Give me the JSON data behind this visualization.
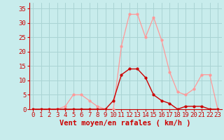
{
  "title": "",
  "xlabel": "Vent moyen/en rafales ( km/h )",
  "ylabel": "",
  "xlim": [
    -0.5,
    23.5
  ],
  "ylim": [
    0,
    37
  ],
  "yticks": [
    0,
    5,
    10,
    15,
    20,
    25,
    30,
    35
  ],
  "xticks": [
    0,
    1,
    2,
    3,
    4,
    5,
    6,
    7,
    8,
    9,
    10,
    11,
    12,
    13,
    14,
    15,
    16,
    17,
    18,
    19,
    20,
    21,
    22,
    23
  ],
  "bg_color": "#c8ecec",
  "grid_color": "#aad4d4",
  "curve_light_color": "#ff9999",
  "curve_dark_color": "#cc0000",
  "x": [
    0,
    1,
    2,
    3,
    4,
    5,
    6,
    7,
    8,
    9,
    10,
    11,
    12,
    13,
    14,
    15,
    16,
    17,
    18,
    19,
    20,
    21,
    22,
    23
  ],
  "y_light": [
    0,
    0,
    0,
    0,
    1,
    5,
    5,
    3,
    1,
    0,
    0,
    22,
    33,
    33,
    25,
    32,
    24,
    13,
    6,
    5,
    7,
    12,
    12,
    0
  ],
  "y_dark": [
    0,
    0,
    0,
    0,
    0,
    0,
    0,
    0,
    0,
    0,
    3,
    12,
    14,
    14,
    11,
    5,
    3,
    2,
    0,
    1,
    1,
    1,
    0,
    0
  ],
  "tick_fontsize": 6.5,
  "label_fontsize": 7.5,
  "tick_color": "#cc0000",
  "label_color": "#cc0000",
  "axis_color": "#cc0000"
}
